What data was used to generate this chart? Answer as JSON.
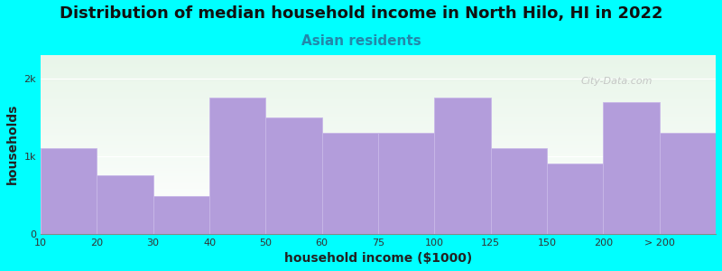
{
  "title": "Distribution of median household income in North Hilo, HI in 2022",
  "subtitle": "Asian residents",
  "xlabel": "household income ($1000)",
  "ylabel": "households",
  "background_color": "#00FFFF",
  "bar_color": "#b39ddb",
  "bar_edge_color": "#c8b8e8",
  "categories": [
    "10",
    "20",
    "30",
    "40",
    "50",
    "60",
    "75",
    "100",
    "125",
    "150",
    "200",
    "> 200"
  ],
  "values": [
    1100,
    750,
    480,
    1750,
    1500,
    1300,
    1300,
    1750,
    1100,
    900,
    1700,
    1300
  ],
  "ylim": [
    0,
    2300
  ],
  "yticks": [
    0,
    1000,
    2000
  ],
  "ytick_labels": [
    "0",
    "1k",
    "2k"
  ],
  "watermark": "City-Data.com",
  "title_fontsize": 13,
  "subtitle_fontsize": 11,
  "axis_label_fontsize": 10,
  "subtitle_color": "#2288aa"
}
